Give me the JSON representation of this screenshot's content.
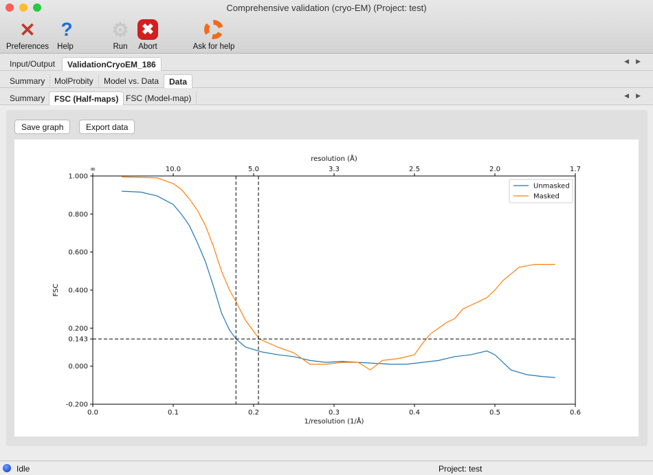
{
  "window": {
    "title": "Comprehensive validation (cryo-EM) (Project: test)"
  },
  "toolbar": [
    {
      "label": "Preferences",
      "icon": "tools-icon"
    },
    {
      "label": "Help",
      "icon": "question-icon"
    },
    {
      "label": "Run",
      "icon": "gear-icon"
    },
    {
      "label": "Abort",
      "icon": "stop-icon"
    },
    {
      "label": "Ask for help",
      "icon": "lifebuoy-icon"
    }
  ],
  "tabs1": [
    "Input/Output",
    "ValidationCryoEM_186"
  ],
  "tabs2": [
    "Summary",
    "MolProbity",
    "Model vs. Data",
    "Data"
  ],
  "tabs3": [
    "Summary",
    "FSC (Half-maps)",
    "FSC (Model-map)"
  ],
  "buttons": {
    "save": "Save graph",
    "export": "Export data"
  },
  "status": {
    "state": "Idle",
    "project": "Project: test"
  },
  "chart_data": {
    "type": "line",
    "xlabel": "1/resolution (1/Å)",
    "ylabel": "FSC",
    "top_xlabel": "resolution (Å)",
    "xlim": [
      0,
      0.6
    ],
    "ylim": [
      -0.2,
      1.0
    ],
    "xticks": [
      "0.0",
      "0.1",
      "0.2",
      "0.3",
      "0.4",
      "0.5",
      "0.6"
    ],
    "yticks": [
      "-0.200",
      "0.000",
      "0.143",
      "0.200",
      "0.400",
      "0.600",
      "0.800",
      "1.000"
    ],
    "top_ticks": [
      {
        "x": 0,
        "label": "∞"
      },
      {
        "x": 0.1,
        "label": "10.0"
      },
      {
        "x": 0.2,
        "label": "5.0"
      },
      {
        "x": 0.3,
        "label": "3.3"
      },
      {
        "x": 0.4,
        "label": "2.5"
      },
      {
        "x": 0.5,
        "label": "2.0"
      },
      {
        "x": 0.6,
        "label": "1.7"
      }
    ],
    "threshold": 0.143,
    "vlines": [
      0.178,
      0.206
    ],
    "legend": "top-right",
    "series": [
      {
        "name": "Unmasked",
        "color": "#1f77b4",
        "x": [
          0.036,
          0.06,
          0.08,
          0.1,
          0.11,
          0.12,
          0.13,
          0.14,
          0.15,
          0.16,
          0.17,
          0.178,
          0.19,
          0.21,
          0.23,
          0.25,
          0.27,
          0.29,
          0.31,
          0.33,
          0.35,
          0.37,
          0.39,
          0.41,
          0.43,
          0.45,
          0.47,
          0.49,
          0.5,
          0.52,
          0.54,
          0.56,
          0.575
        ],
        "y": [
          0.92,
          0.915,
          0.895,
          0.85,
          0.8,
          0.74,
          0.65,
          0.55,
          0.42,
          0.28,
          0.19,
          0.143,
          0.1,
          0.075,
          0.06,
          0.05,
          0.03,
          0.02,
          0.025,
          0.02,
          0.015,
          0.01,
          0.01,
          0.02,
          0.03,
          0.05,
          0.06,
          0.08,
          0.06,
          -0.02,
          -0.045,
          -0.055,
          -0.06
        ]
      },
      {
        "name": "Masked",
        "color": "#ff7f0e",
        "x": [
          0.036,
          0.08,
          0.1,
          0.11,
          0.12,
          0.13,
          0.14,
          0.15,
          0.16,
          0.17,
          0.178,
          0.19,
          0.207,
          0.23,
          0.25,
          0.27,
          0.29,
          0.31,
          0.33,
          0.345,
          0.36,
          0.38,
          0.4,
          0.41,
          0.42,
          0.43,
          0.44,
          0.45,
          0.46,
          0.47,
          0.49,
          0.5,
          0.51,
          0.53,
          0.55,
          0.575
        ],
        "y": [
          0.995,
          0.99,
          0.96,
          0.93,
          0.88,
          0.82,
          0.74,
          0.63,
          0.5,
          0.4,
          0.34,
          0.24,
          0.143,
          0.1,
          0.07,
          0.01,
          0.01,
          0.02,
          0.02,
          -0.02,
          0.03,
          0.04,
          0.06,
          0.12,
          0.17,
          0.2,
          0.23,
          0.25,
          0.3,
          0.32,
          0.36,
          0.4,
          0.45,
          0.52,
          0.535,
          0.535
        ]
      }
    ]
  }
}
